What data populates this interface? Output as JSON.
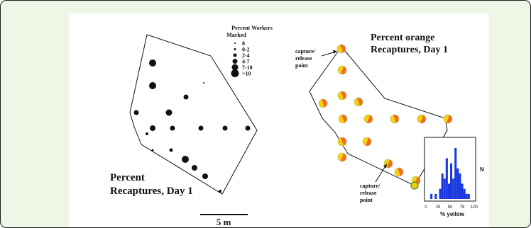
{
  "left_panel": {
    "title_line1": "Percent",
    "title_line2": "Recaptures, Day 1",
    "scale_bar_label": "5 m"
  },
  "legend": {
    "title_line1": "Percent Workers",
    "title_line2": "Marked",
    "items": [
      "0",
      "0-2",
      "2-4",
      "4-7",
      "7-10",
      ">10"
    ]
  },
  "right_panel": {
    "title_line1": "Percent orange",
    "title_line2": "Recaptures, Day 1",
    "capture_label_top": [
      "capture/",
      "release",
      "point"
    ],
    "capture_label_bottom": [
      "capture/",
      "release",
      "point"
    ],
    "marker_colors": {
      "orange": "#f07018",
      "yellow": "#f2d400",
      "outline": "#c0b090"
    }
  },
  "inset_histogram": {
    "y_label": "N",
    "x_label": "% yellow",
    "x_ticks": [
      "0",
      "25",
      "50",
      "75",
      "100"
    ],
    "bar_color": "#1a3ae0",
    "bar_heights": [
      0,
      1,
      0,
      1,
      0,
      2,
      5,
      4,
      8,
      3,
      7,
      4,
      10,
      6,
      5,
      3,
      2,
      1,
      1,
      0
    ]
  }
}
